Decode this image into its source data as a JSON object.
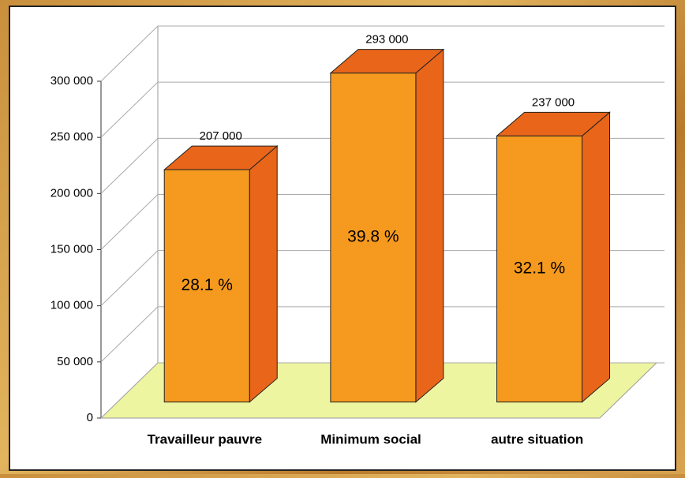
{
  "chart_data": {
    "type": "bar3d",
    "categories": [
      "Travailleur pauvre",
      "Minimum social",
      "autre situation"
    ],
    "values": [
      207000,
      293000,
      237000
    ],
    "value_labels": [
      "207 000",
      "293 000",
      "237 000"
    ],
    "shares": [
      28.1,
      39.8,
      32.1
    ],
    "share_labels": [
      "28.1 %",
      "39.8 %",
      "32.1 %"
    ],
    "color": "#f59a1e",
    "side_color": "#e8651a",
    "floor_color": "#eef5a0",
    "ylim": [
      0,
      300000
    ],
    "yticks": [
      0,
      {
        "value": 50000,
        "label": "50 000"
      },
      {
        "value": 100000,
        "label": "100 000"
      },
      {
        "value": 150000,
        "label": "150 000"
      },
      {
        "value": 200000,
        "label": "200 000"
      },
      {
        "value": 250000,
        "label": "250 000"
      },
      {
        "value": 300000,
        "label": "300 000"
      }
    ],
    "grid": true
  }
}
